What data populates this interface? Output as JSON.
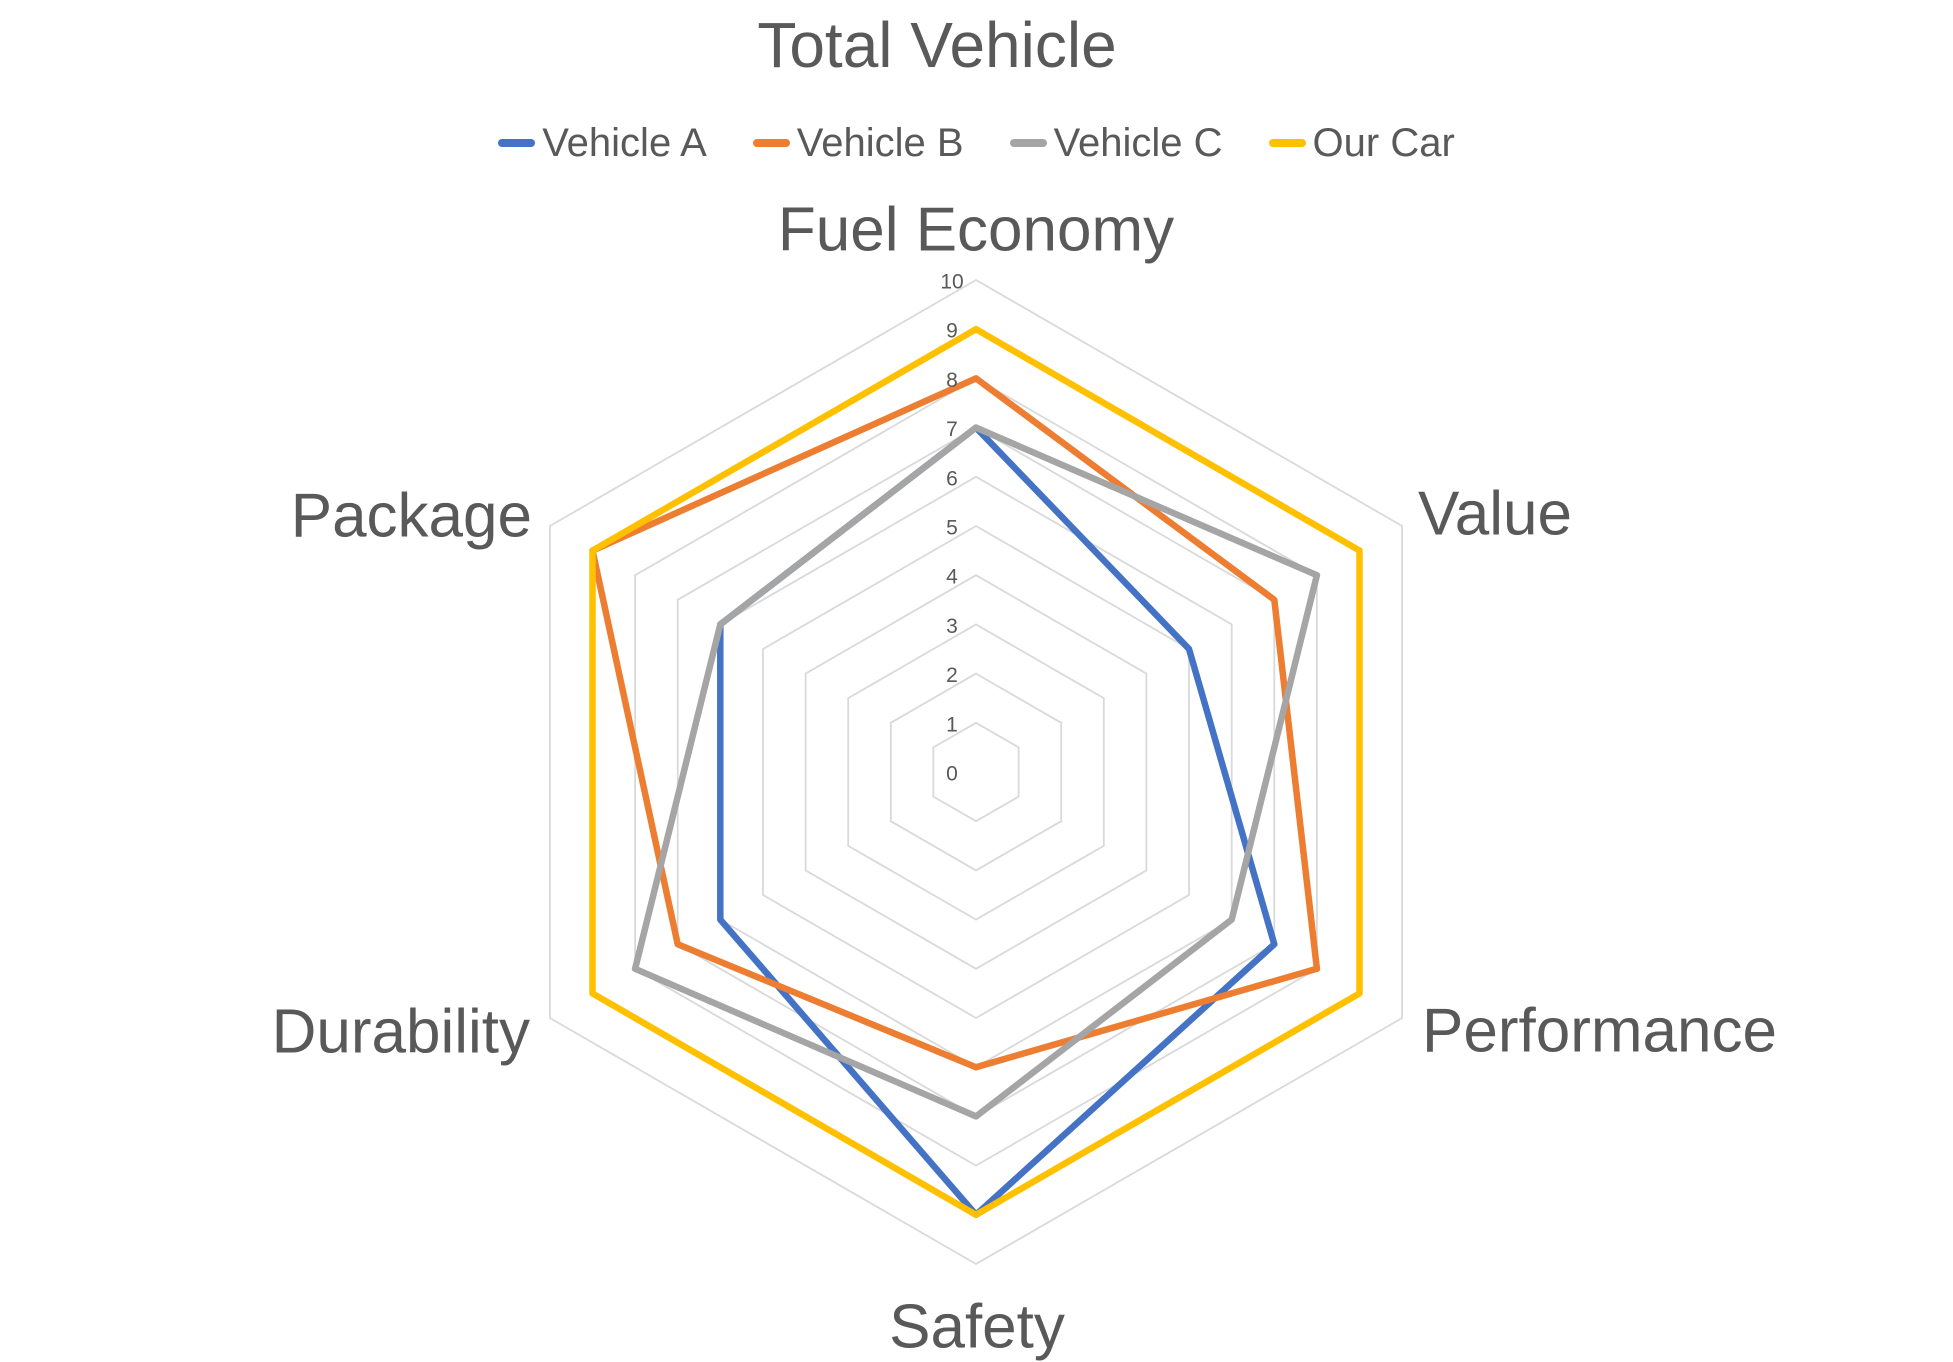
{
  "title": "Total Vehicle",
  "chart_data": {
    "type": "radar",
    "title": "Total Vehicle",
    "categories": [
      "Fuel Economy",
      "Value",
      "Performance",
      "Safety",
      "Durability",
      "Package"
    ],
    "series": [
      {
        "name": "Vehicle A",
        "color": "#4472C4",
        "values": [
          7,
          5,
          7,
          9,
          6,
          6
        ]
      },
      {
        "name": "Vehicle B",
        "color": "#ED7D31",
        "values": [
          8,
          7,
          8,
          6,
          7,
          9
        ]
      },
      {
        "name": "Vehicle C",
        "color": "#A5A5A5",
        "values": [
          7,
          8,
          6,
          7,
          8,
          6
        ]
      },
      {
        "name": "Our Car",
        "color": "#FFC000",
        "values": [
          9,
          9,
          9,
          9,
          9,
          9
        ]
      }
    ],
    "value_axis": {
      "min": 0,
      "max": 10,
      "step": 1,
      "tick_labels": [
        "0",
        "1",
        "2",
        "3",
        "4",
        "5",
        "6",
        "7",
        "8",
        "9",
        "10"
      ]
    },
    "grid": {
      "shape": "hexagon",
      "rings": 10,
      "spokes": false,
      "color": "#D9D9D9"
    },
    "legend_position": "top",
    "text_color": "#595959"
  }
}
